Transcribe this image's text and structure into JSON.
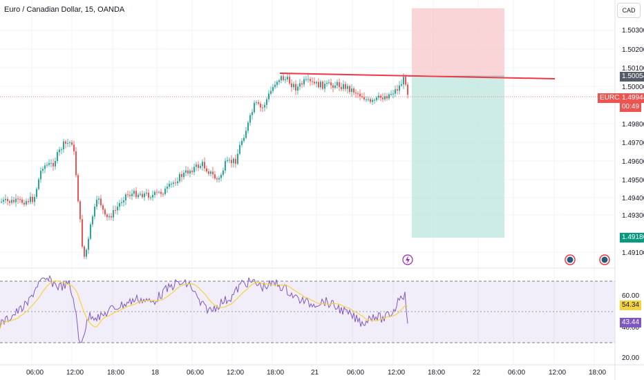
{
  "header": {
    "title": "Euro / Canadian Dollar, 15, OANDA"
  },
  "currency_button": "CAD",
  "colors": {
    "up": "#26a69a",
    "down": "#ef5350",
    "rsi": "#7e57c2",
    "rsi_ma": "#f5d33f",
    "grid": "#f0f3fa"
  },
  "price_axis": {
    "ticks": [
      "1.50300",
      "1.50200",
      "1.50100",
      "1.50000",
      "1.49800",
      "1.49700",
      "1.49600",
      "1.49500",
      "1.49400",
      "1.49300",
      "1.49100"
    ]
  },
  "price_badges": {
    "stop_price": "1.50054",
    "symbol": "EURCAD",
    "current_price": "1.49944",
    "countdown": "00:49",
    "target_price": "1.49186"
  },
  "rsi_axis": {
    "ticks": [
      "60.00",
      "40.00",
      "20.00"
    ],
    "rsi_value": "43.44",
    "rsi_ma_value": "54.34"
  },
  "time_axis": {
    "ticks": [
      "06:00",
      "12:00",
      "18:00",
      "18",
      "06:00",
      "12:00",
      "18:00",
      "21",
      "06:00",
      "12:00",
      "18:00",
      "22",
      "06:00",
      "12:00",
      "18:00"
    ]
  },
  "icons": {
    "flash": "lightning-icon",
    "event1": "economic-event-icon",
    "event2": "economic-event-icon"
  }
}
